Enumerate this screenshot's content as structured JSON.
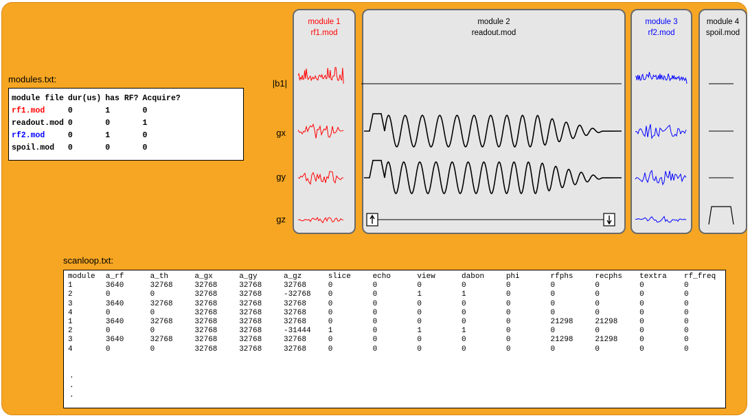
{
  "colors": {
    "background": "#f6a623",
    "panel_fill": "#e6e6e6",
    "panel_border": "#6a6a6a",
    "module1": "#ff0000",
    "module2": "#000000",
    "module3": "#0000ff",
    "module4": "#000000"
  },
  "modules_file": {
    "title": "modules.txt:",
    "headers": [
      "module file",
      "dur(us)",
      "has RF?",
      "Acquire?"
    ],
    "rows": [
      {
        "file": "rf1.mod",
        "dur": "0",
        "has_rf": "1",
        "acquire": "0",
        "color": "#ff0000"
      },
      {
        "file": "readout.mod",
        "dur": "0",
        "has_rf": "0",
        "acquire": "1",
        "color": "#000000"
      },
      {
        "file": "rf2.mod",
        "dur": "0",
        "has_rf": "1",
        "acquire": "0",
        "color": "#0000ff"
      },
      {
        "file": "spoil.mod",
        "dur": "0",
        "has_rf": "0",
        "acquire": "0",
        "color": "#000000"
      }
    ]
  },
  "channel_labels": [
    "|b1|",
    "gx",
    "gy",
    "gz"
  ],
  "modules": [
    {
      "name": "module 1",
      "file": "rf1.mod",
      "color": "#ff0000",
      "waveforms": [
        "rf-noise",
        "noise",
        "noise",
        "noise"
      ]
    },
    {
      "name": "module 2",
      "file": "readout.mod",
      "color": "#000000",
      "waveforms": [
        "flat",
        "readout",
        "readout",
        "flat-with-arrows"
      ]
    },
    {
      "name": "module 3",
      "file": "rf2.mod",
      "color": "#0000ff",
      "waveforms": [
        "rf-noise",
        "noise",
        "noise",
        "noise"
      ]
    },
    {
      "name": "module 4",
      "file": "spoil.mod",
      "color": "#000000",
      "waveforms": [
        "short-line",
        "short-line",
        "short-line",
        "trapezoid"
      ]
    }
  ],
  "scanloop": {
    "title": "scanloop.txt:",
    "columns": [
      "module",
      "a_rf",
      "a_th",
      "a_gx",
      "a_gy",
      "a_gz",
      "slice",
      "echo",
      "view",
      "dabon",
      "phi",
      "rfphs",
      "recphs",
      "textra",
      "rf_freq"
    ],
    "rows": [
      [
        "1",
        "3640",
        "32768",
        "32768",
        "32768",
        "32768",
        "0",
        "0",
        "0",
        "0",
        "0",
        "0",
        "0",
        "0",
        "0"
      ],
      [
        "2",
        "0",
        "0",
        "32768",
        "32768",
        "-32768",
        "0",
        "0",
        "1",
        "1",
        "0",
        "0",
        "0",
        "0",
        "0"
      ],
      [
        "3",
        "3640",
        "32768",
        "32768",
        "32768",
        "32768",
        "0",
        "0",
        "0",
        "0",
        "0",
        "0",
        "0",
        "0",
        "0"
      ],
      [
        "4",
        "0",
        "0",
        "32768",
        "32768",
        "32768",
        "0",
        "0",
        "0",
        "0",
        "0",
        "0",
        "0",
        "0",
        "0"
      ],
      [
        "1",
        "3640",
        "32768",
        "32768",
        "32768",
        "32768",
        "0",
        "0",
        "0",
        "0",
        "0",
        "21298",
        "21298",
        "0",
        "0"
      ],
      [
        "2",
        "0",
        "0",
        "32768",
        "32768",
        "-31444",
        "1",
        "0",
        "1",
        "1",
        "0",
        "0",
        "0",
        "0",
        "0"
      ],
      [
        "3",
        "3640",
        "32768",
        "32768",
        "32768",
        "32768",
        "0",
        "0",
        "0",
        "0",
        "0",
        "21298",
        "21298",
        "0",
        "0"
      ],
      [
        "4",
        "0",
        "0",
        "32768",
        "32768",
        "32768",
        "0",
        "0",
        "0",
        "0",
        "0",
        "0",
        "0",
        "0",
        "0"
      ]
    ],
    "continuation": [
      ".",
      ".",
      "."
    ]
  }
}
